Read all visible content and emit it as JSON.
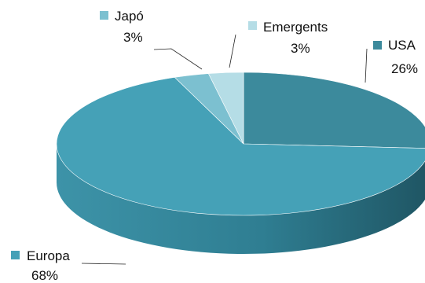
{
  "chart_data": {
    "type": "pie",
    "style": "3d",
    "title": "",
    "slices": [
      {
        "name": "USA",
        "value": 26,
        "value_label": "26%",
        "color": "#3c8a9c"
      },
      {
        "name": "Europa",
        "value": 68,
        "value_label": "68%",
        "color": "#45a1b7"
      },
      {
        "name": "Japó",
        "value": 3,
        "value_label": "3%",
        "color": "#7cc0d0"
      },
      {
        "name": "Emergents",
        "value": 3,
        "value_label": "3%",
        "color": "#b5dde6"
      }
    ],
    "legend": "labels beside slices with leader lines"
  }
}
